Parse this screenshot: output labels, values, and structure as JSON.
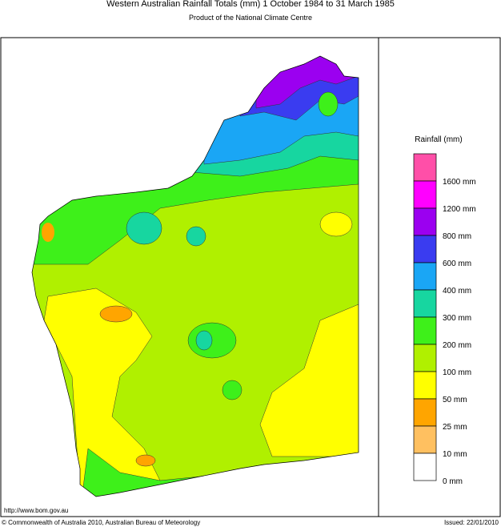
{
  "header": {
    "title": "Western Australian Rainfall Totals (mm) 1 October 1984 to 31 March 1985",
    "subtitle": "Product of the National Climate Centre"
  },
  "legend": {
    "title": "Rainfall (mm)",
    "colors": [
      "#ff4fa8",
      "#ff00ff",
      "#9b00f0",
      "#3a3cf0",
      "#1aa6f5",
      "#17d6a0",
      "#3ef01a",
      "#b0f000",
      "#ffff00",
      "#ffa500",
      "#ffc060",
      "#ffffff"
    ],
    "labels": [
      "1600 mm",
      "1200 mm",
      "800 mm",
      "600 mm",
      "400 mm",
      "300 mm",
      "200 mm",
      "100 mm",
      "50 mm",
      "25 mm",
      "10 mm",
      "0 mm"
    ]
  },
  "footer": {
    "url": "http://www.bom.gov.au",
    "copyright": "© Commonwealth of Australia 2010, Australian Bureau of Meteorology",
    "issued": "Issued: 22/01/2010"
  }
}
